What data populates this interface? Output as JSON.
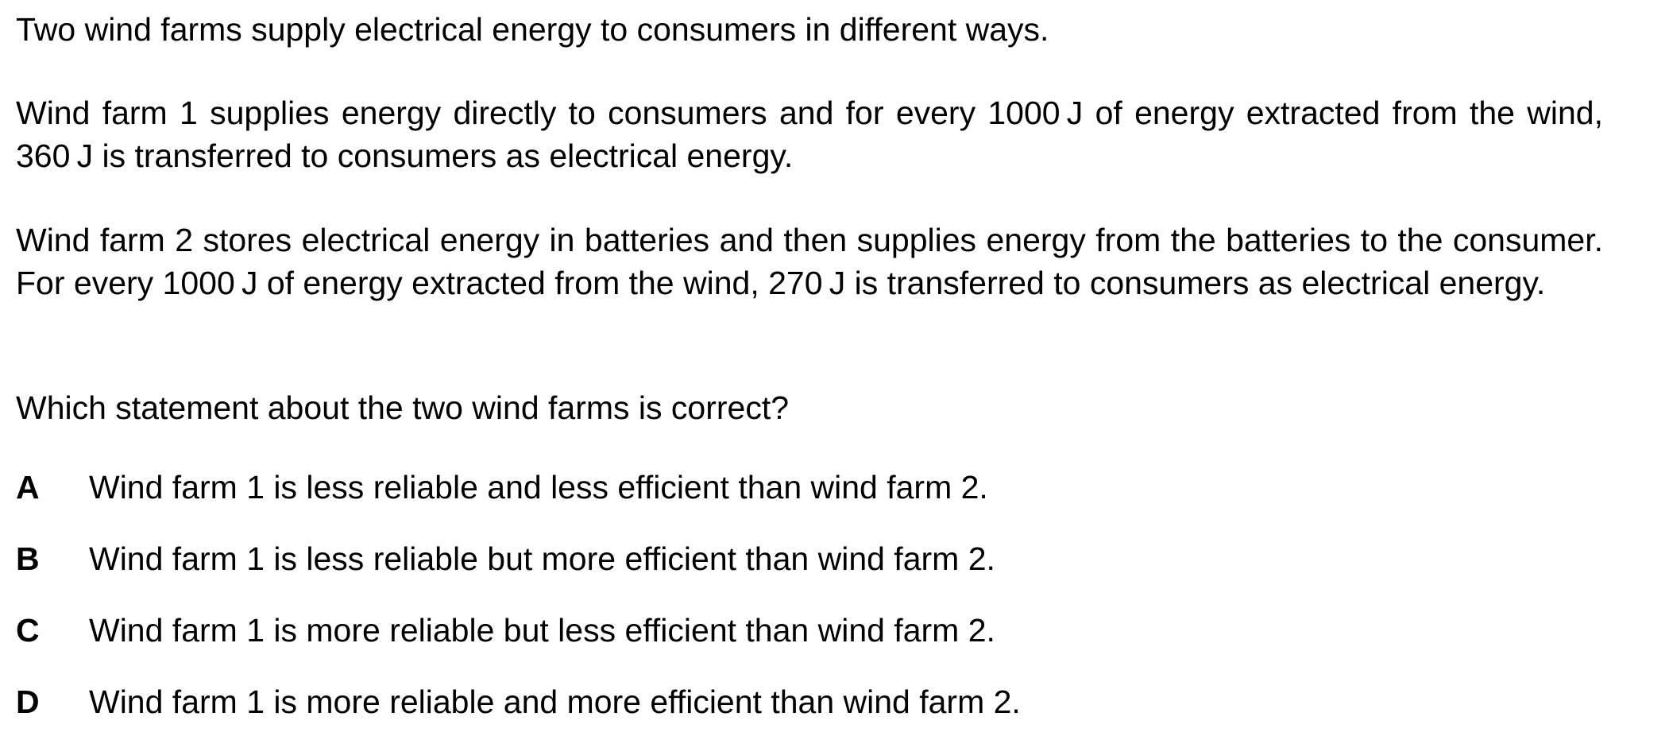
{
  "question": {
    "intro": "Two wind farms supply electrical energy to consumers in different ways.",
    "farm1": "Wind farm 1 supplies energy directly to consumers and for every 1000 J of energy extracted from the wind, 360 J is transferred to consumers as electrical energy.",
    "farm2": "Wind farm 2 stores electrical energy in batteries and then supplies energy from the batteries to the consumer. For every 1000 J of energy extracted from the wind, 270 J is transferred to consumers as electrical energy.",
    "prompt": "Which statement about the two wind farms is correct?"
  },
  "options": [
    {
      "letter": "A",
      "text": "Wind farm 1 is less reliable and less efficient than wind farm 2."
    },
    {
      "letter": "B",
      "text": "Wind farm 1 is less reliable but more efficient than wind farm 2."
    },
    {
      "letter": "C",
      "text": "Wind farm 1 is more reliable but less efficient than wind farm 2."
    },
    {
      "letter": "D",
      "text": "Wind farm 1 is more reliable and more efficient than wind farm 2."
    }
  ]
}
